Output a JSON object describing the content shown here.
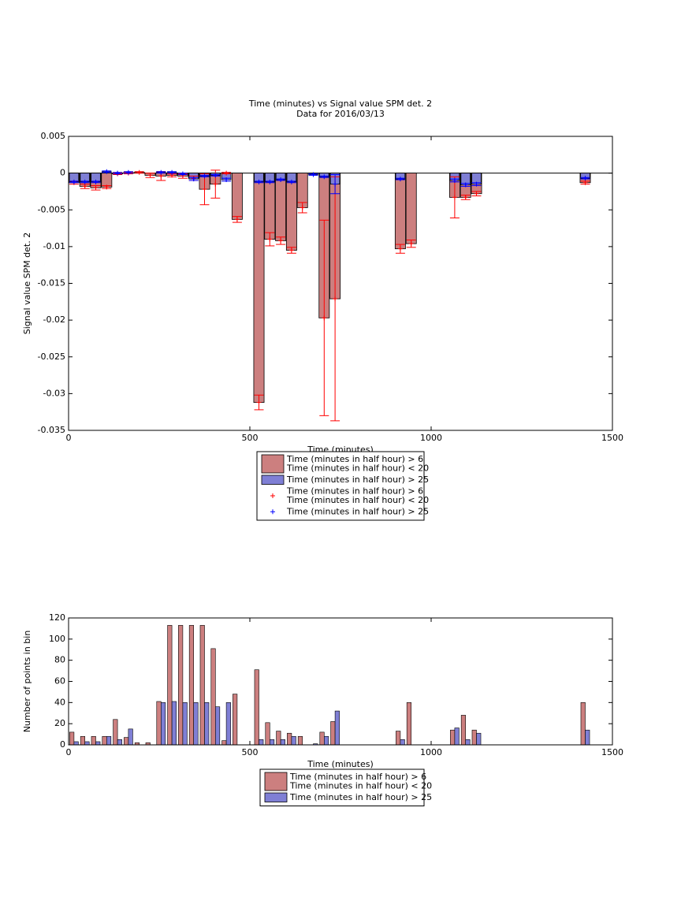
{
  "chart_data": [
    {
      "type": "bar_errorbar",
      "title": "Time (minutes) vs Signal value SPM det. 2",
      "subtitle": "Data for 2016/03/13",
      "x_label": "Time (minutes)",
      "y_label": "Signal value SPM det. 2",
      "x": [
        15,
        45,
        75,
        105,
        135,
        165,
        195,
        225,
        255,
        285,
        315,
        345,
        375,
        405,
        435,
        465,
        525,
        555,
        585,
        615,
        645,
        675,
        705,
        735,
        915,
        945,
        1065,
        1095,
        1125,
        1425
      ],
      "series": [
        {
          "name": "Time (minutes in half hour) > 6\nTime (minutes in half hour) < 20",
          "color": "#cc7f7f",
          "marker_color": "#ff0000",
          "values": [
            -0.0013,
            -0.0018,
            -0.002,
            -0.0019,
            -0.0001,
            0.0,
            0.0001,
            -0.0003,
            -0.0004,
            -0.0003,
            -0.0004,
            -0.0007,
            -0.0022,
            -0.0015,
            0.0,
            -0.0063,
            -0.0312,
            -0.009,
            -0.0092,
            -0.0105,
            -0.0047,
            null,
            -0.0197,
            -0.0171,
            -0.0103,
            -0.0096,
            -0.0033,
            -0.0033,
            -0.0028,
            -0.0013
          ],
          "errors": [
            0.0002,
            0.0003,
            0.0003,
            0.0002,
            0.0001,
            0.0001,
            0.0001,
            0.0003,
            0.0006,
            0.0002,
            0.0003,
            0.0003,
            0.0021,
            0.0019,
            0.0001,
            0.0004,
            0.001,
            0.0009,
            0.0005,
            0.0004,
            0.0007,
            null,
            0.0133,
            0.0166,
            0.0006,
            0.0005,
            0.0028,
            0.0003,
            0.0003,
            0.0002
          ]
        },
        {
          "name": "Time (minutes in half hour) > 25",
          "color": "#7f7fd5",
          "marker_color": "#0000ff",
          "values": [
            -0.0012,
            -0.0012,
            -0.0012,
            0.0002,
            0.0,
            0.0001,
            null,
            null,
            0.0001,
            0.0001,
            -0.0001,
            -0.0008,
            -0.0004,
            -0.0003,
            -0.0009,
            null,
            -0.0012,
            -0.0012,
            -0.0009,
            -0.0012,
            null,
            -0.0002,
            -0.0005,
            -0.0015,
            -0.0008,
            null,
            -0.001,
            -0.0016,
            -0.0015,
            -0.0007
          ],
          "errors": [
            0.0001,
            0.0001,
            0.0001,
            0.0001,
            0.0001,
            0.0001,
            null,
            null,
            0.0001,
            0.0001,
            0.0001,
            0.0002,
            0.0001,
            0.0001,
            0.0002,
            null,
            0.0001,
            0.0001,
            0.0001,
            0.0001,
            null,
            0.0001,
            0.0001,
            0.0013,
            0.0001,
            null,
            0.0002,
            0.0002,
            0.0002,
            0.0001
          ]
        }
      ],
      "xlim": [
        0,
        1500
      ],
      "xticks": [
        0,
        500,
        1000,
        1500
      ],
      "ylim": [
        -0.035,
        0.005
      ],
      "yticks": [
        0.005,
        0,
        -0.005,
        -0.01,
        -0.015,
        -0.02,
        -0.025,
        -0.03,
        -0.035
      ]
    },
    {
      "type": "bar",
      "x_label": "Time (minutes)",
      "y_label": "Number of points in bin",
      "x": [
        15,
        45,
        75,
        105,
        135,
        165,
        195,
        225,
        255,
        285,
        315,
        345,
        375,
        405,
        435,
        465,
        495,
        525,
        555,
        585,
        615,
        645,
        675,
        705,
        735,
        915,
        945,
        1065,
        1095,
        1125,
        1425
      ],
      "series": [
        {
          "name": "Time (minutes in half hour) > 6\nTime (minutes in half hour) < 20",
          "color": "#cc7f7f",
          "values": [
            12,
            8,
            8,
            8,
            24,
            7,
            2,
            2,
            41,
            113,
            113,
            113,
            113,
            91,
            4,
            48,
            0,
            71,
            21,
            13,
            11,
            8,
            0,
            12,
            22,
            13,
            40,
            14,
            28,
            14,
            40
          ]
        },
        {
          "name": "Time (minutes in half hour) > 25",
          "color": "#7f7fd5",
          "values": [
            3,
            3,
            3,
            8,
            5,
            15,
            0,
            0,
            40,
            41,
            40,
            40,
            40,
            36,
            40,
            0,
            0,
            5,
            5,
            5,
            8,
            0,
            1,
            8,
            32,
            5,
            0,
            16,
            5,
            11,
            14
          ]
        }
      ],
      "xlim": [
        0,
        1500
      ],
      "xticks": [
        0,
        500,
        1000,
        1500
      ],
      "ylim": [
        0,
        120
      ],
      "yticks": [
        0,
        20,
        40,
        60,
        80,
        100,
        120
      ]
    }
  ]
}
